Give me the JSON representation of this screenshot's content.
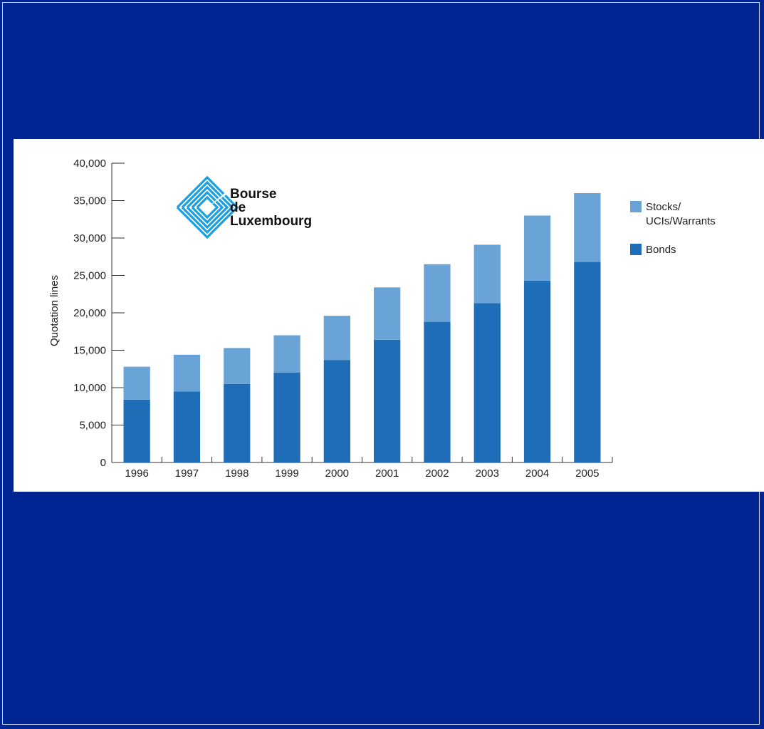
{
  "colors": {
    "background": "#002593",
    "bonds": "#1f6db6",
    "stocks": "#6aa3d5",
    "logo": "#1a9fe0"
  },
  "logo": {
    "icon": "bourse-de-luxembourg-logo-icon",
    "lines": [
      "Bourse",
      "de",
      "Luxembourg"
    ]
  },
  "chart_data": {
    "type": "bar",
    "stacked": true,
    "categories": [
      "1996",
      "1997",
      "1998",
      "1999",
      "2000",
      "2001",
      "2002",
      "2003",
      "2004",
      "2005"
    ],
    "series": [
      {
        "name": "Bonds",
        "color": "#1f6db6",
        "values": [
          8400,
          9500,
          10500,
          12000,
          13700,
          16400,
          18800,
          21300,
          24300,
          26800
        ]
      },
      {
        "name": "Stocks/ UCIs/Warrants",
        "color": "#6aa3d5",
        "values": [
          4400,
          4900,
          4800,
          5000,
          5900,
          7000,
          7700,
          7800,
          8700,
          9200
        ]
      }
    ],
    "ylabel": "Quotation lines",
    "ylim": [
      0,
      40000
    ],
    "yticks": [
      "0",
      "5,000",
      "10,000",
      "15,000",
      "20,000",
      "25,000",
      "30,000",
      "35,000",
      "40,000"
    ],
    "legend": {
      "placement": "right",
      "items": [
        {
          "lines": [
            "Stocks/",
            "UCIs/Warrants"
          ],
          "color": "#6aa3d5"
        },
        {
          "lines": [
            "Bonds"
          ],
          "color": "#1f6db6"
        }
      ]
    },
    "grid": false
  }
}
